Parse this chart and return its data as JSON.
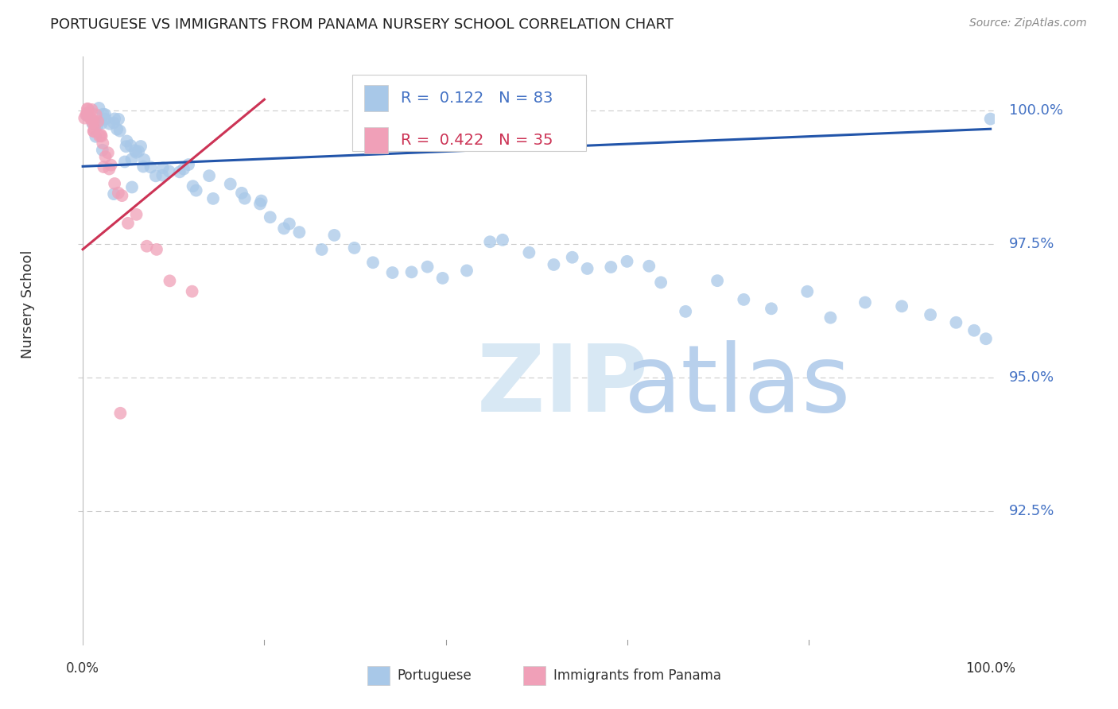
{
  "title": "PORTUGUESE VS IMMIGRANTS FROM PANAMA NURSERY SCHOOL CORRELATION CHART",
  "source": "Source: ZipAtlas.com",
  "ylabel": "Nursery School",
  "xlim_min": -0.005,
  "xlim_max": 1.005,
  "ylim_min": 0.9,
  "ylim_max": 1.01,
  "ytick_vals": [
    0.925,
    0.95,
    0.975,
    1.0
  ],
  "ytick_labels": [
    "92.5%",
    "95.0%",
    "97.5%",
    "100.0%"
  ],
  "xtick_vals": [
    0.0,
    1.0
  ],
  "xtick_labels": [
    "0.0%",
    "100.0%"
  ],
  "blue_scatter_color": "#a8c8e8",
  "pink_scatter_color": "#f0a0b8",
  "trend_blue_color": "#2255aa",
  "trend_pink_color": "#cc3355",
  "legend_R_blue": "0.122",
  "legend_N_blue": "83",
  "legend_R_pink": "0.422",
  "legend_N_pink": "35",
  "ytick_color": "#4472c4",
  "grid_color": "#cccccc",
  "title_color": "#222222",
  "source_color": "#888888",
  "ylabel_color": "#333333",
  "watermark_zip_color": "#d8e8f4",
  "watermark_atlas_color": "#b8d0ec",
  "bottom_legend_label1": "Portuguese",
  "bottom_legend_label2": "Immigrants from Panama",
  "blue_trend_x0": 0.0,
  "blue_trend_y0": 0.9895,
  "blue_trend_x1": 1.0,
  "blue_trend_y1": 0.9965,
  "pink_trend_x0": 0.0,
  "pink_trend_y0": 0.974,
  "pink_trend_x1": 0.2,
  "pink_trend_y1": 1.002,
  "scatter_size": 130,
  "scatter_alpha": 0.75,
  "blue_x": [
    0.005,
    0.008,
    0.01,
    0.012,
    0.015,
    0.018,
    0.02,
    0.022,
    0.025,
    0.028,
    0.03,
    0.032,
    0.035,
    0.038,
    0.04,
    0.042,
    0.045,
    0.048,
    0.05,
    0.052,
    0.055,
    0.058,
    0.06,
    0.062,
    0.065,
    0.068,
    0.07,
    0.075,
    0.08,
    0.085,
    0.09,
    0.095,
    0.1,
    0.11,
    0.115,
    0.12,
    0.13,
    0.14,
    0.15,
    0.16,
    0.17,
    0.18,
    0.19,
    0.2,
    0.21,
    0.22,
    0.23,
    0.24,
    0.26,
    0.28,
    0.3,
    0.32,
    0.34,
    0.36,
    0.38,
    0.4,
    0.42,
    0.44,
    0.46,
    0.49,
    0.52,
    0.54,
    0.56,
    0.58,
    0.6,
    0.62,
    0.64,
    0.66,
    0.7,
    0.73,
    0.76,
    0.8,
    0.83,
    0.86,
    0.9,
    0.93,
    0.96,
    0.98,
    1.0,
    1.0,
    0.025,
    0.035,
    0.05
  ],
  "blue_y": [
    0.999,
    0.999,
    0.999,
    0.998,
    0.998,
    0.999,
    0.998,
    0.998,
    0.998,
    0.998,
    0.998,
    0.997,
    0.997,
    0.996,
    0.996,
    0.996,
    0.991,
    0.992,
    0.993,
    0.992,
    0.991,
    0.99,
    0.99,
    0.99,
    0.992,
    0.991,
    0.99,
    0.988,
    0.987,
    0.988,
    0.989,
    0.988,
    0.99,
    0.988,
    0.989,
    0.986,
    0.984,
    0.986,
    0.985,
    0.984,
    0.983,
    0.982,
    0.981,
    0.982,
    0.98,
    0.979,
    0.978,
    0.977,
    0.975,
    0.974,
    0.973,
    0.972,
    0.972,
    0.971,
    0.97,
    0.969,
    0.972,
    0.975,
    0.976,
    0.974,
    0.973,
    0.972,
    0.972,
    0.971,
    0.97,
    0.969,
    0.968,
    0.967,
    0.967,
    0.966,
    0.965,
    0.965,
    0.964,
    0.963,
    0.962,
    0.961,
    0.96,
    0.959,
    0.958,
    1.0,
    0.989,
    0.985,
    0.987
  ],
  "pink_x": [
    0.002,
    0.003,
    0.004,
    0.005,
    0.006,
    0.007,
    0.008,
    0.009,
    0.01,
    0.011,
    0.012,
    0.013,
    0.014,
    0.015,
    0.016,
    0.017,
    0.018,
    0.019,
    0.02,
    0.022,
    0.024,
    0.026,
    0.028,
    0.03,
    0.032,
    0.035,
    0.04,
    0.045,
    0.05,
    0.06,
    0.07,
    0.08,
    0.095,
    0.12,
    0.04
  ],
  "pink_y": [
    1.0,
    1.0,
    1.0,
    1.0,
    1.0,
    1.0,
    0.999,
    0.999,
    0.999,
    0.998,
    0.998,
    0.998,
    0.997,
    0.997,
    0.996,
    0.996,
    0.995,
    0.994,
    0.994,
    0.993,
    0.992,
    0.991,
    0.99,
    0.989,
    0.988,
    0.987,
    0.985,
    0.983,
    0.981,
    0.978,
    0.975,
    0.972,
    0.969,
    0.965,
    0.944
  ]
}
